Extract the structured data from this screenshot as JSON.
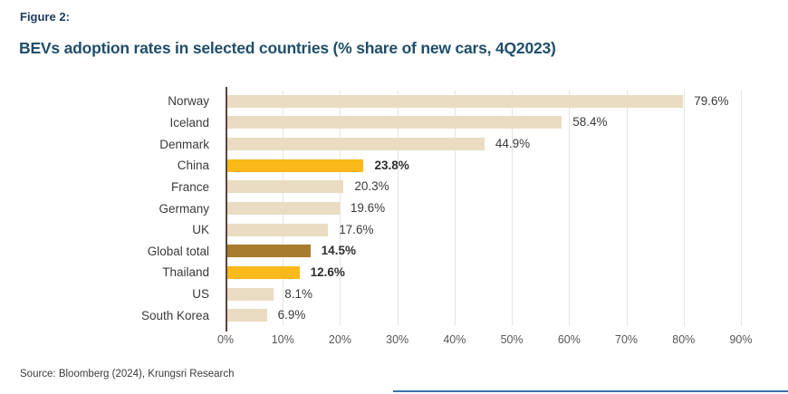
{
  "header": {
    "figure_label": "Figure 2:",
    "title": "BEVs adoption rates in selected countries (% share of new cars, 4Q2023)"
  },
  "chart_data": {
    "type": "bar",
    "orientation": "horizontal",
    "title": "BEVs adoption rates in selected countries (% share of new cars, 4Q2023)",
    "categories": [
      "Norway",
      "Iceland",
      "Denmark",
      "China",
      "France",
      "Germany",
      "UK",
      "Global total",
      "Thailand",
      "US",
      "South Korea"
    ],
    "values": [
      79.6,
      58.4,
      44.9,
      23.8,
      20.3,
      19.6,
      17.6,
      14.5,
      12.6,
      8.1,
      6.9
    ],
    "value_labels": [
      "79.6%",
      "58.4%",
      "44.9%",
      "23.8%",
      "20.3%",
      "19.6%",
      "17.6%",
      "14.5%",
      "12.6%",
      "8.1%",
      "6.9%"
    ],
    "bar_styles": [
      "default",
      "default",
      "default",
      "accent",
      "default",
      "default",
      "default",
      "emphasis",
      "accent",
      "default",
      "default"
    ],
    "bold_labels": [
      false,
      false,
      false,
      true,
      false,
      false,
      false,
      true,
      true,
      false,
      false
    ],
    "xlabel": "",
    "ylabel": "",
    "xlim": [
      0,
      90
    ],
    "x_ticks": [
      "0%",
      "10%",
      "20%",
      "30%",
      "40%",
      "50%",
      "60%",
      "70%",
      "80%",
      "90%"
    ],
    "grid": true,
    "legend": "none",
    "colors": {
      "bar_default": "#eadcc2",
      "bar_accent": "#fbb81a",
      "bar_emphasis": "#a87c2e",
      "axis_line": "#55453e",
      "gridline": "#e6e4e1",
      "title": "#1f4e6b",
      "figure_label": "#1e3a5f",
      "text": "#3b3b3b",
      "divider": "#3a70a8"
    }
  },
  "footer": {
    "source": "Source: Bloomberg (2024), Krungsri Research"
  }
}
